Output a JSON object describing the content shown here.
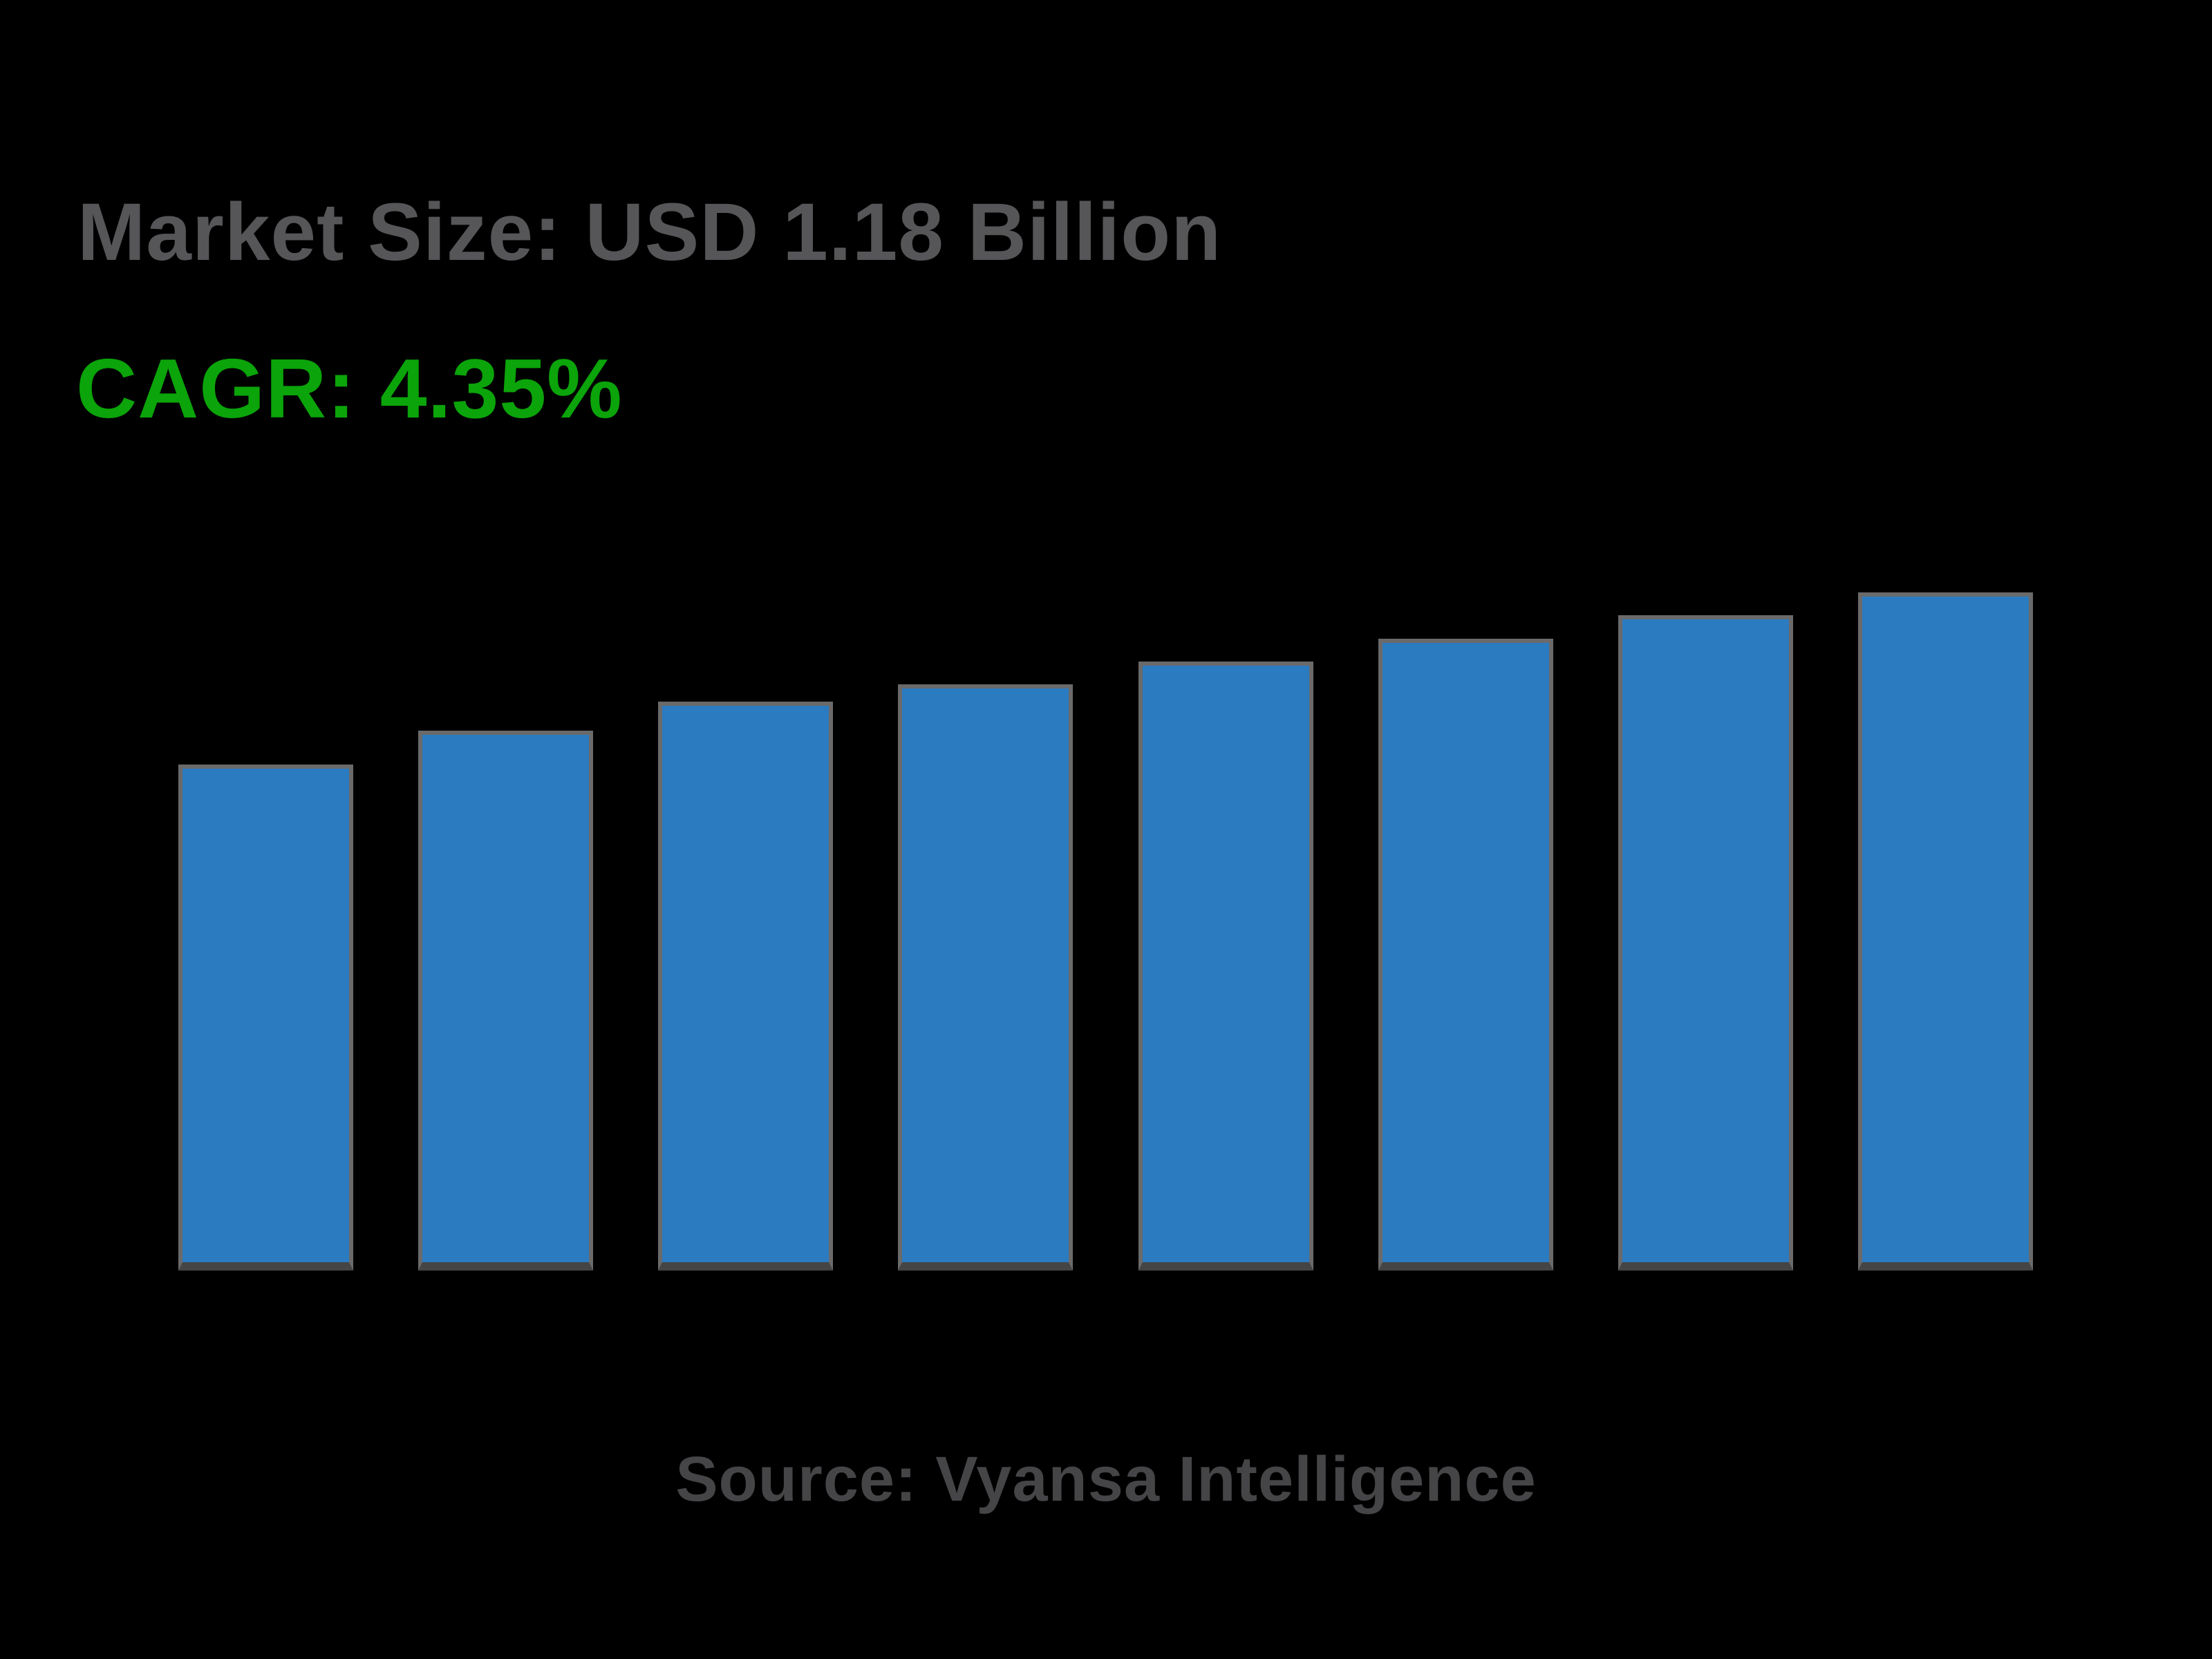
{
  "header": {
    "market_size_label": "Market Size: USD 1.18 Billion",
    "cagr_label": "CAGR: 4.35%"
  },
  "footer": {
    "source_label": "Source: Vyansa Intelligence"
  },
  "colors": {
    "background": "#000000",
    "title_gray": "#565658",
    "cagr_green": "#0ba40a",
    "source_gray": "#454547",
    "bar_fill": "#2b7bc1",
    "bar_border": "#6a6a6a",
    "bar_border_bottom": "#454545"
  },
  "chart_data": {
    "type": "bar",
    "title": "Market Size: USD 1.18 Billion",
    "subtitle": "CAGR: 4.35%",
    "annotation": "Source: Vyansa Intelligence",
    "categories": [
      "",
      "",
      "",
      "",
      "",
      "",
      "",
      ""
    ],
    "values": [
      0.88,
      0.94,
      0.99,
      1.02,
      1.06,
      1.1,
      1.14,
      1.18
    ],
    "values_estimated": true,
    "y_unit": "USD Billion",
    "ylim": [
      0,
      1.18
    ],
    "xlabel": "",
    "ylabel": "",
    "axis_labels_visible": false,
    "grid": false,
    "legend": null
  }
}
